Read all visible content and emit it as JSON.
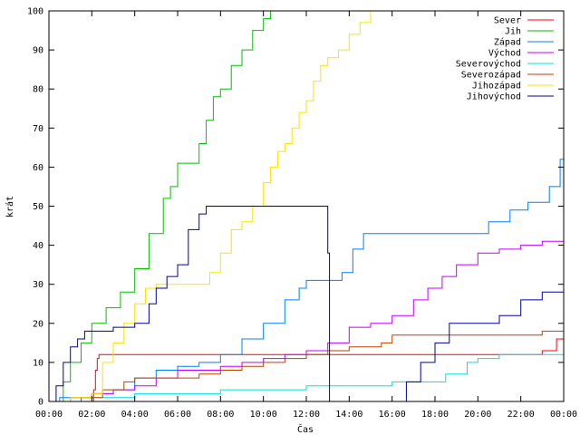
{
  "chart_data": {
    "type": "line",
    "title": "",
    "xlabel": "Čas",
    "ylabel": "krát",
    "x_range": [
      "00:00",
      "24:00"
    ],
    "ylim": [
      0,
      100
    ],
    "x_ticks": [
      "00:00",
      "02:00",
      "04:00",
      "06:00",
      "08:00",
      "10:00",
      "12:00",
      "14:00",
      "16:00",
      "18:00",
      "20:00",
      "22:00",
      "00:00"
    ],
    "y_ticks": [
      0,
      10,
      20,
      30,
      40,
      50,
      60,
      70,
      80,
      90,
      100
    ],
    "grid": false,
    "legend_position": "top-right",
    "series": [
      {
        "name": "Sever",
        "color": "#ff0000",
        "points": [
          [
            "02:00",
            0
          ],
          [
            "02:05",
            3
          ],
          [
            "02:10",
            8
          ],
          [
            "02:15",
            11
          ],
          [
            "02:20",
            12
          ],
          [
            "06:00",
            12
          ],
          [
            "12:00",
            12
          ],
          [
            "16:00",
            12
          ],
          [
            "20:00",
            12
          ],
          [
            "22:00",
            12
          ],
          [
            "23:00",
            13
          ],
          [
            "23:40",
            16
          ],
          [
            "24:00",
            17
          ]
        ]
      },
      {
        "name": "Jih",
        "color": "#00c000",
        "points": [
          [
            "00:00",
            0
          ],
          [
            "00:40",
            5
          ],
          [
            "01:00",
            10
          ],
          [
            "01:30",
            15
          ],
          [
            "02:00",
            20
          ],
          [
            "02:40",
            24
          ],
          [
            "03:20",
            28
          ],
          [
            "04:00",
            34
          ],
          [
            "04:40",
            43
          ],
          [
            "05:20",
            52
          ],
          [
            "05:40",
            55
          ],
          [
            "06:00",
            61
          ],
          [
            "06:40",
            61
          ],
          [
            "07:00",
            66
          ],
          [
            "07:20",
            72
          ],
          [
            "07:40",
            78
          ],
          [
            "08:00",
            80
          ],
          [
            "08:30",
            86
          ],
          [
            "09:00",
            90
          ],
          [
            "09:30",
            95
          ],
          [
            "10:00",
            98
          ],
          [
            "10:20",
            100
          ]
        ]
      },
      {
        "name": "Západ",
        "color": "#0080ff",
        "points": [
          [
            "00:00",
            0
          ],
          [
            "00:30",
            1
          ],
          [
            "02:00",
            2
          ],
          [
            "03:00",
            3
          ],
          [
            "04:00",
            6
          ],
          [
            "05:00",
            8
          ],
          [
            "06:00",
            9
          ],
          [
            "07:00",
            10
          ],
          [
            "08:00",
            12
          ],
          [
            "09:00",
            16
          ],
          [
            "10:00",
            20
          ],
          [
            "11:00",
            26
          ],
          [
            "11:40",
            29
          ],
          [
            "12:00",
            31
          ],
          [
            "13:00",
            31
          ],
          [
            "13:40",
            33
          ],
          [
            "14:10",
            39
          ],
          [
            "14:40",
            43
          ],
          [
            "16:00",
            43
          ],
          [
            "18:00",
            43
          ],
          [
            "20:00",
            43
          ],
          [
            "20:30",
            46
          ],
          [
            "21:30",
            49
          ],
          [
            "22:20",
            51
          ],
          [
            "23:20",
            55
          ],
          [
            "23:50",
            62
          ],
          [
            "24:00",
            63
          ]
        ]
      },
      {
        "name": "Východ",
        "color": "#c000ff",
        "points": [
          [
            "00:00",
            0
          ],
          [
            "01:00",
            1
          ],
          [
            "02:00",
            2
          ],
          [
            "03:00",
            3
          ],
          [
            "04:00",
            4
          ],
          [
            "05:00",
            6
          ],
          [
            "06:00",
            8
          ],
          [
            "08:00",
            9
          ],
          [
            "09:00",
            10
          ],
          [
            "10:00",
            11
          ],
          [
            "11:00",
            12
          ],
          [
            "12:00",
            13
          ],
          [
            "13:00",
            15
          ],
          [
            "14:00",
            19
          ],
          [
            "15:00",
            20
          ],
          [
            "16:00",
            22
          ],
          [
            "17:00",
            26
          ],
          [
            "17:40",
            29
          ],
          [
            "18:20",
            32
          ],
          [
            "19:00",
            35
          ],
          [
            "20:00",
            38
          ],
          [
            "21:00",
            39
          ],
          [
            "22:00",
            40
          ],
          [
            "23:00",
            41
          ],
          [
            "24:00",
            41
          ]
        ]
      },
      {
        "name": "Severovýchod",
        "color": "#00e0e0",
        "points": [
          [
            "00:00",
            0
          ],
          [
            "01:00",
            1
          ],
          [
            "02:00",
            1
          ],
          [
            "04:00",
            2
          ],
          [
            "06:00",
            2
          ],
          [
            "07:00",
            2
          ],
          [
            "08:00",
            3
          ],
          [
            "10:00",
            3
          ],
          [
            "12:00",
            4
          ],
          [
            "14:00",
            4
          ],
          [
            "15:30",
            4
          ],
          [
            "16:00",
            5
          ],
          [
            "18:00",
            5
          ],
          [
            "18:30",
            7
          ],
          [
            "19:30",
            10
          ],
          [
            "20:00",
            11
          ],
          [
            "21:00",
            12
          ],
          [
            "24:00",
            12
          ]
        ]
      },
      {
        "name": "Severozápad",
        "color": "#c04000",
        "points": [
          [
            "00:00",
            0
          ],
          [
            "01:30",
            1
          ],
          [
            "02:30",
            3
          ],
          [
            "03:30",
            5
          ],
          [
            "04:00",
            6
          ],
          [
            "07:00",
            7
          ],
          [
            "08:00",
            8
          ],
          [
            "09:00",
            9
          ],
          [
            "10:00",
            10
          ],
          [
            "11:00",
            11
          ],
          [
            "12:00",
            12
          ],
          [
            "13:00",
            13
          ],
          [
            "14:00",
            14
          ],
          [
            "15:30",
            15
          ],
          [
            "16:00",
            17
          ],
          [
            "18:00",
            17
          ],
          [
            "20:00",
            17
          ],
          [
            "22:00",
            17
          ],
          [
            "23:00",
            18
          ],
          [
            "24:00",
            18
          ]
        ]
      },
      {
        "name": "Jihozápad",
        "color": "#ffe000",
        "points": [
          [
            "00:00",
            0
          ],
          [
            "01:00",
            1
          ],
          [
            "02:00",
            2
          ],
          [
            "02:30",
            10
          ],
          [
            "03:00",
            15
          ],
          [
            "03:30",
            20
          ],
          [
            "04:00",
            25
          ],
          [
            "04:30",
            29
          ],
          [
            "05:00",
            30
          ],
          [
            "06:00",
            30
          ],
          [
            "07:00",
            30
          ],
          [
            "07:30",
            33
          ],
          [
            "08:00",
            38
          ],
          [
            "08:30",
            44
          ],
          [
            "09:00",
            46
          ],
          [
            "09:30",
            50
          ],
          [
            "10:00",
            56
          ],
          [
            "10:20",
            60
          ],
          [
            "10:40",
            64
          ],
          [
            "11:00",
            66
          ],
          [
            "11:20",
            70
          ],
          [
            "11:40",
            74
          ],
          [
            "12:00",
            77
          ],
          [
            "12:20",
            82
          ],
          [
            "12:40",
            86
          ],
          [
            "13:00",
            88
          ],
          [
            "13:30",
            90
          ],
          [
            "14:00",
            94
          ],
          [
            "14:30",
            97
          ],
          [
            "15:00",
            100
          ]
        ]
      },
      {
        "name": "Jihovýchod",
        "color": "#0000a0",
        "points": [
          [
            "00:00",
            0
          ],
          [
            "00:20",
            4
          ],
          [
            "00:40",
            10
          ],
          [
            "01:00",
            14
          ],
          [
            "01:20",
            16
          ],
          [
            "01:40",
            18
          ],
          [
            "02:00",
            18
          ],
          [
            "02:30",
            18
          ],
          [
            "03:00",
            19
          ],
          [
            "04:00",
            20
          ],
          [
            "04:40",
            25
          ],
          [
            "05:00",
            29
          ],
          [
            "05:30",
            32
          ],
          [
            "06:00",
            35
          ],
          [
            "06:30",
            44
          ],
          [
            "07:00",
            48
          ],
          [
            "07:20",
            50
          ],
          [
            "08:00",
            50
          ],
          [
            "10:00",
            50
          ],
          [
            "12:00",
            50
          ],
          [
            "13:00",
            50
          ],
          [
            "13:00",
            38
          ],
          [
            "13:05",
            0
          ],
          [
            "16:00",
            0
          ],
          [
            "16:40",
            5
          ],
          [
            "17:20",
            10
          ],
          [
            "18:00",
            15
          ],
          [
            "18:40",
            20
          ],
          [
            "19:20",
            20
          ],
          [
            "20:00",
            20
          ],
          [
            "21:00",
            22
          ],
          [
            "22:00",
            26
          ],
          [
            "23:00",
            28
          ],
          [
            "24:00",
            28
          ]
        ]
      }
    ]
  }
}
